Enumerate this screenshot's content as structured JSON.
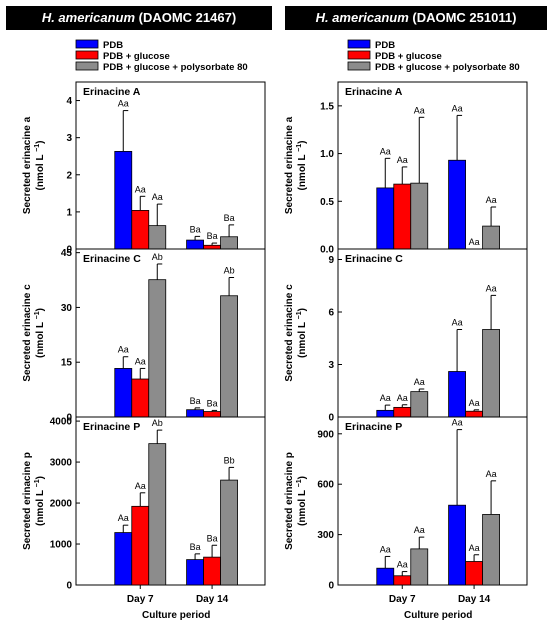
{
  "figure": {
    "panels": [
      {
        "species": "H. americanum",
        "strain": "(DAOMC 21467)"
      },
      {
        "species": "H. americanum",
        "strain": "(DAOMC 251011)"
      }
    ],
    "legend": [
      "PDB",
      "PDB + glucose",
      "PDB + glucose + polysorbate 80"
    ],
    "colors": {
      "PDB": "#0000ff",
      "PDB + glucose": "#ff0000",
      "PDB + glucose + polysorbate 80": "#8c8c8c"
    },
    "x_axis_label": "Culture period",
    "ylabel_prefix": "Secreted ",
    "ylabel_unit_base": "(nmol L",
    "ylabel_unit_sup": "−1",
    "ylabel_unit_end": ")"
  },
  "chart_data": [
    {
      "type": "bar",
      "panel": "(DAOMC 21467)",
      "title": "Erinacine A",
      "ylabel": "Secreted erinacine A (nmol L⁻¹)",
      "categories": [
        "Day 7",
        "Day 14"
      ],
      "ylim": [
        0,
        4.5
      ],
      "yticks": [
        "0",
        "1",
        "2",
        "3",
        "4"
      ],
      "series": [
        {
          "name": "PDB",
          "values": [
            2.63,
            0.24
          ],
          "errors": [
            1.1,
            0.1
          ],
          "labels": [
            "Aa",
            "Ba"
          ]
        },
        {
          "name": "PDB + glucose",
          "values": [
            1.04,
            0.1
          ],
          "errors": [
            0.38,
            0.06
          ],
          "labels": [
            "Aa",
            "Ba"
          ]
        },
        {
          "name": "PDB + glucose + polysorbate 80",
          "values": [
            0.63,
            0.33
          ],
          "errors": [
            0.58,
            0.32
          ],
          "labels": [
            "Aa",
            "Ba"
          ]
        }
      ]
    },
    {
      "type": "bar",
      "panel": "(DAOMC 21467)",
      "title": "Erinacine C",
      "ylabel": "Secreted erinacine C (nmol L⁻¹)",
      "categories": [
        "Day 7",
        "Day 14"
      ],
      "ylim": [
        0,
        46
      ],
      "yticks": [
        "0",
        "15",
        "30",
        "45"
      ],
      "series": [
        {
          "name": "PDB",
          "values": [
            13.3,
            2.0
          ],
          "errors": [
            3.2,
            0.5
          ],
          "labels": [
            "Aa",
            "Ba"
          ]
        },
        {
          "name": "PDB + glucose",
          "values": [
            10.4,
            1.5
          ],
          "errors": [
            2.9,
            0.3
          ],
          "labels": [
            "Aa",
            "Ba"
          ]
        },
        {
          "name": "PDB + glucose + polysorbate 80",
          "values": [
            37.6,
            33.2
          ],
          "errors": [
            4.3,
            5.0
          ],
          "labels": [
            "Ab",
            "Ab"
          ]
        }
      ]
    },
    {
      "type": "bar",
      "panel": "(DAOMC 21467)",
      "title": "Erinacine P",
      "ylabel": "Secreted erinacine P (nmol L⁻¹)",
      "categories": [
        "Day 7",
        "Day 14"
      ],
      "ylim": [
        0,
        4100
      ],
      "yticks": [
        "0",
        "1000",
        "2000",
        "3000",
        "4000"
      ],
      "series": [
        {
          "name": "PDB",
          "values": [
            1280,
            620
          ],
          "errors": [
            180,
            140
          ],
          "labels": [
            "Aa",
            "Ba"
          ]
        },
        {
          "name": "PDB + glucose",
          "values": [
            1920,
            680
          ],
          "errors": [
            330,
            290
          ],
          "labels": [
            "Aa",
            "Ba"
          ]
        },
        {
          "name": "PDB + glucose + polysorbate 80",
          "values": [
            3450,
            2560
          ],
          "errors": [
            330,
            310
          ],
          "labels": [
            "Ab",
            "Bb"
          ]
        }
      ]
    },
    {
      "type": "bar",
      "panel": "(DAOMC 251011)",
      "title": "Erinacine A",
      "ylabel": "Secreted erinacine A (nmol L⁻¹)",
      "categories": [
        "Day 7",
        "Day 14"
      ],
      "ylim": [
        0,
        1.75
      ],
      "yticks": [
        "0.0",
        "0.5",
        "1.0",
        "1.5"
      ],
      "series": [
        {
          "name": "PDB",
          "values": [
            0.64,
            0.93
          ],
          "errors": [
            0.31,
            0.47
          ],
          "labels": [
            "Aa",
            "Aa"
          ]
        },
        {
          "name": "PDB + glucose",
          "values": [
            0.68,
            0.0
          ],
          "errors": [
            0.18,
            0.0
          ],
          "labels": [
            "Aa",
            "Aa"
          ]
        },
        {
          "name": "PDB + glucose + polysorbate 80",
          "values": [
            0.69,
            0.24
          ],
          "errors": [
            0.69,
            0.2
          ],
          "labels": [
            "Aa",
            "Aa"
          ]
        }
      ]
    },
    {
      "type": "bar",
      "panel": "(DAOMC 251011)",
      "title": "Erinacine C",
      "ylabel": "Secreted erinacine C (nmol L⁻¹)",
      "categories": [
        "Day 7",
        "Day 14"
      ],
      "ylim": [
        0,
        9.6
      ],
      "yticks": [
        "0",
        "3",
        "6",
        "9"
      ],
      "series": [
        {
          "name": "PDB",
          "values": [
            0.38,
            2.6
          ],
          "errors": [
            0.3,
            2.4
          ],
          "labels": [
            "Aa",
            "Aa"
          ]
        },
        {
          "name": "PDB + glucose",
          "values": [
            0.55,
            0.33
          ],
          "errors": [
            0.15,
            0.08
          ],
          "labels": [
            "Aa",
            "Aa"
          ]
        },
        {
          "name": "PDB + glucose + polysorbate 80",
          "values": [
            1.45,
            5.0
          ],
          "errors": [
            0.15,
            1.95
          ],
          "labels": [
            "Aa",
            "Aa"
          ]
        }
      ]
    },
    {
      "type": "bar",
      "panel": "(DAOMC 251011)",
      "title": "Erinacine P",
      "ylabel": "Secreted erinacine P (nmol L⁻¹)",
      "categories": [
        "Day 7",
        "Day 14"
      ],
      "ylim": [
        0,
        1000
      ],
      "yticks": [
        "0",
        "300",
        "600",
        "900"
      ],
      "series": [
        {
          "name": "PDB",
          "values": [
            100,
            475
          ],
          "errors": [
            70,
            450
          ],
          "labels": [
            "Aa",
            "Aa"
          ]
        },
        {
          "name": "PDB + glucose",
          "values": [
            55,
            140
          ],
          "errors": [
            25,
            40
          ],
          "labels": [
            "Aa",
            "Aa"
          ]
        },
        {
          "name": "PDB + glucose + polysorbate 80",
          "values": [
            215,
            420
          ],
          "errors": [
            70,
            200
          ],
          "labels": [
            "Aa",
            "Aa"
          ]
        }
      ]
    }
  ]
}
